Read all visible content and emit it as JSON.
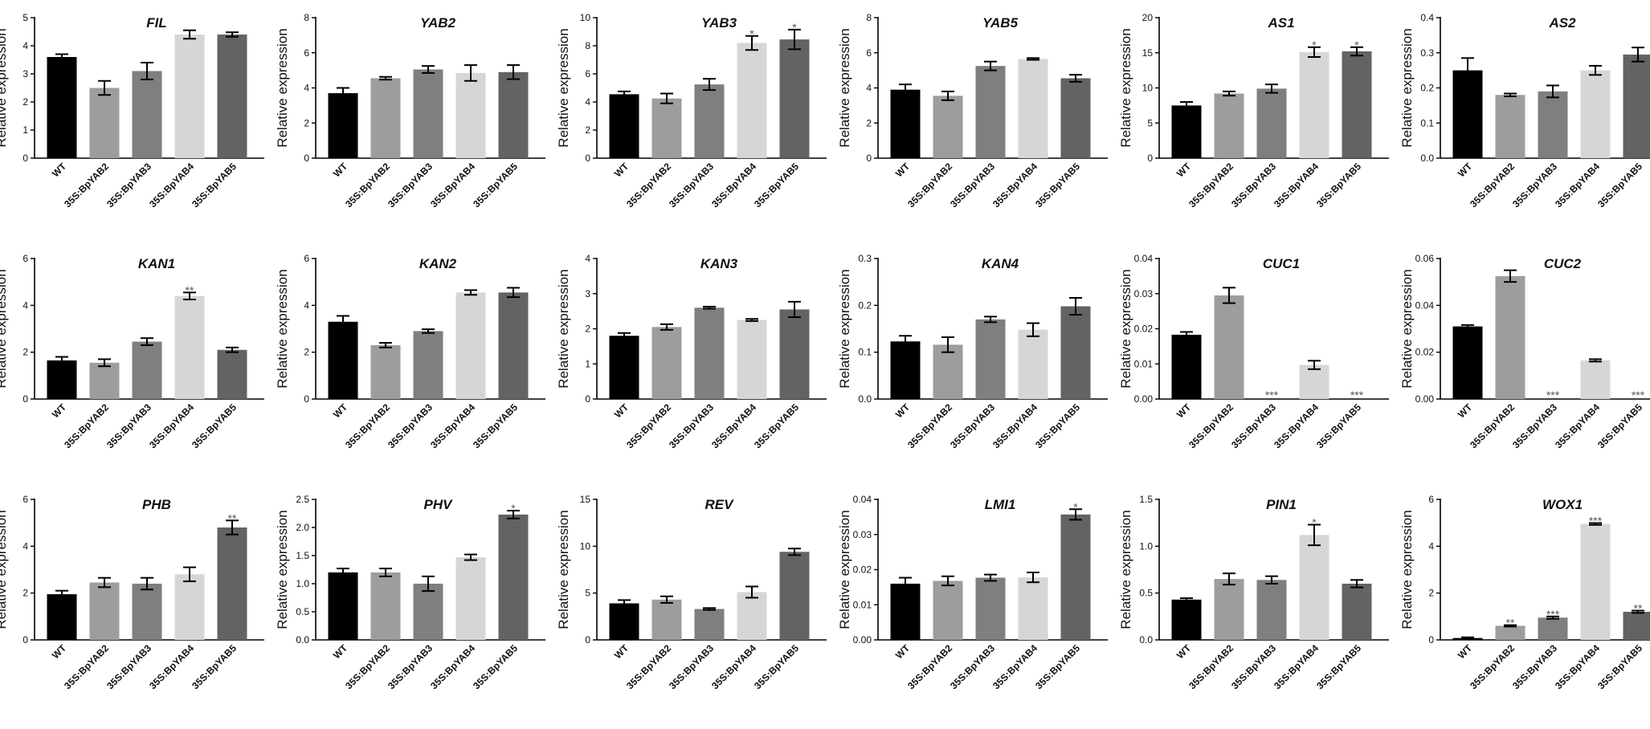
{
  "bar_colors": [
    "#000000",
    "#9d9d9d",
    "#7f7f7f",
    "#d6d6d6",
    "#636363"
  ],
  "chart_data": [
    {
      "type": "bar",
      "title": "FIL",
      "ylabel": "Relative expression",
      "categories": [
        "WT",
        "35S:BpYAB2",
        "35S:BpYAB3",
        "35S:BpYAB4",
        "35S:BpYAB5"
      ],
      "values": [
        3.6,
        2.5,
        3.1,
        4.4,
        4.4
      ],
      "errors": [
        0.1,
        0.25,
        0.3,
        0.15,
        0.08
      ],
      "significance": [
        "",
        "",
        "",
        "",
        ""
      ],
      "ylim": [
        0,
        5
      ],
      "ticks": [
        0,
        1,
        2,
        3,
        4,
        5
      ],
      "tick_labels": [
        "0",
        "1",
        "2",
        "3",
        "4",
        "5"
      ]
    },
    {
      "type": "bar",
      "title": "YAB2",
      "ylabel": "Relative expression",
      "categories": [
        "WT",
        "35S:BpYAB2",
        "35S:BpYAB3",
        "35S:BpYAB4",
        "35S:BpYAB5"
      ],
      "values": [
        3.7,
        4.55,
        5.05,
        4.85,
        4.9
      ],
      "errors": [
        0.3,
        0.08,
        0.2,
        0.45,
        0.4
      ],
      "significance": [
        "",
        "",
        "",
        "",
        ""
      ],
      "ylim": [
        0,
        8
      ],
      "ticks": [
        0,
        2,
        4,
        6,
        8
      ],
      "tick_labels": [
        "0",
        "2",
        "4",
        "6",
        "8"
      ]
    },
    {
      "type": "bar",
      "title": "YAB3",
      "ylabel": "Relative expression",
      "categories": [
        "WT",
        "35S:BpYAB2",
        "35S:BpYAB3",
        "35S:BpYAB4",
        "35S:BpYAB5"
      ],
      "values": [
        4.55,
        4.25,
        5.25,
        8.2,
        8.45
      ],
      "errors": [
        0.2,
        0.35,
        0.4,
        0.5,
        0.7
      ],
      "significance": [
        "",
        "",
        "",
        "*",
        "*"
      ],
      "ylim": [
        0,
        10
      ],
      "ticks": [
        0,
        2,
        4,
        6,
        8,
        10
      ],
      "tick_labels": [
        "0",
        "2",
        "4",
        "6",
        "8",
        "10"
      ]
    },
    {
      "type": "bar",
      "title": "YAB5",
      "ylabel": "Relative expression",
      "categories": [
        "WT",
        "35S:BpYAB2",
        "35S:BpYAB3",
        "35S:BpYAB4",
        "35S:BpYAB5"
      ],
      "values": [
        3.9,
        3.55,
        5.25,
        5.65,
        4.55
      ],
      "errors": [
        0.3,
        0.25,
        0.25,
        0.05,
        0.2
      ],
      "significance": [
        "",
        "",
        "",
        "",
        ""
      ],
      "ylim": [
        0,
        8
      ],
      "ticks": [
        0,
        2,
        4,
        6,
        8
      ],
      "tick_labels": [
        "0",
        "2",
        "4",
        "6",
        "8"
      ]
    },
    {
      "type": "bar",
      "title": "AS1",
      "ylabel": "Relative expression",
      "categories": [
        "WT",
        "35S:BpYAB2",
        "35S:BpYAB3",
        "35S:BpYAB4",
        "35S:BpYAB5"
      ],
      "values": [
        7.5,
        9.2,
        9.9,
        15.1,
        15.2
      ],
      "errors": [
        0.5,
        0.3,
        0.6,
        0.7,
        0.6
      ],
      "significance": [
        "",
        "",
        "",
        "*",
        "*"
      ],
      "ylim": [
        0,
        20
      ],
      "ticks": [
        0,
        5,
        10,
        15,
        20
      ],
      "tick_labels": [
        "0",
        "5",
        "10",
        "15",
        "20"
      ]
    },
    {
      "type": "bar",
      "title": "AS2",
      "ylabel": "Relative expression",
      "categories": [
        "WT",
        "35S:BpYAB2",
        "35S:BpYAB3",
        "35S:BpYAB4",
        "35S:BpYAB5"
      ],
      "values": [
        0.25,
        0.18,
        0.19,
        0.25,
        0.295
      ],
      "errors": [
        0.035,
        0.004,
        0.017,
        0.013,
        0.02
      ],
      "significance": [
        "",
        "",
        "",
        "",
        ""
      ],
      "ylim": [
        0,
        0.4
      ],
      "ticks": [
        0,
        0.1,
        0.2,
        0.3,
        0.4
      ],
      "tick_labels": [
        "0.0",
        "0.1",
        "0.2",
        "0.3",
        "0.4"
      ]
    },
    {
      "type": "bar",
      "title": "KAN1",
      "ylabel": "Relative expression",
      "categories": [
        "WT",
        "35S:BpYAB2",
        "35S:BpYAB3",
        "35S:BpYAB4",
        "35S:BpYAB5"
      ],
      "values": [
        1.65,
        1.55,
        2.45,
        4.4,
        2.1
      ],
      "errors": [
        0.15,
        0.15,
        0.15,
        0.15,
        0.1
      ],
      "significance": [
        "",
        "",
        "",
        "**",
        ""
      ],
      "ylim": [
        0,
        6
      ],
      "ticks": [
        0,
        2,
        4,
        6
      ],
      "tick_labels": [
        "0",
        "2",
        "4",
        "6"
      ]
    },
    {
      "type": "bar",
      "title": "KAN2",
      "ylabel": "Relative expression",
      "categories": [
        "WT",
        "35S:BpYAB2",
        "35S:BpYAB3",
        "35S:BpYAB4",
        "35S:BpYAB5"
      ],
      "values": [
        3.3,
        2.3,
        2.9,
        4.55,
        4.55
      ],
      "errors": [
        0.25,
        0.1,
        0.08,
        0.1,
        0.2
      ],
      "significance": [
        "",
        "",
        "",
        "",
        ""
      ],
      "ylim": [
        0,
        6
      ],
      "ticks": [
        0,
        2,
        4,
        6
      ],
      "tick_labels": [
        "0",
        "2",
        "4",
        "6"
      ]
    },
    {
      "type": "bar",
      "title": "KAN3",
      "ylabel": "Relative expression",
      "categories": [
        "WT",
        "35S:BpYAB2",
        "35S:BpYAB3",
        "35S:BpYAB4",
        "35S:BpYAB5"
      ],
      "values": [
        1.8,
        2.05,
        2.6,
        2.25,
        2.55
      ],
      "errors": [
        0.08,
        0.08,
        0.03,
        0.03,
        0.22
      ],
      "significance": [
        "",
        "",
        "",
        "",
        ""
      ],
      "ylim": [
        0,
        4
      ],
      "ticks": [
        0,
        1,
        2,
        3,
        4
      ],
      "tick_labels": [
        "0",
        "1",
        "2",
        "3",
        "4"
      ]
    },
    {
      "type": "bar",
      "title": "KAN4",
      "ylabel": "Relative expression",
      "categories": [
        "WT",
        "35S:BpYAB2",
        "35S:BpYAB3",
        "35S:BpYAB4",
        "35S:BpYAB5"
      ],
      "values": [
        0.123,
        0.116,
        0.17,
        0.148,
        0.198
      ],
      "errors": [
        0.012,
        0.016,
        0.006,
        0.014,
        0.018
      ],
      "significance": [
        "",
        "",
        "",
        "",
        ""
      ],
      "ylim": [
        0,
        0.3
      ],
      "ticks": [
        0,
        0.1,
        0.2,
        0.3
      ],
      "tick_labels": [
        "0.0",
        "0.1",
        "0.2",
        "0.3"
      ]
    },
    {
      "type": "bar",
      "title": "CUC1",
      "ylabel": "Relative expression",
      "categories": [
        "WT",
        "35S:BpYAB2",
        "35S:BpYAB3",
        "35S:BpYAB4",
        "35S:BpYAB5"
      ],
      "values": [
        0.0183,
        0.0295,
        0,
        0.0097,
        0
      ],
      "errors": [
        0.0008,
        0.0022,
        0,
        0.0012,
        0
      ],
      "significance": [
        "",
        "",
        "***",
        "",
        "***"
      ],
      "ylim": [
        0,
        0.04
      ],
      "ticks": [
        0,
        0.01,
        0.02,
        0.03,
        0.04
      ],
      "tick_labels": [
        "0.00",
        "0.01",
        "0.02",
        "0.03",
        "0.04"
      ]
    },
    {
      "type": "bar",
      "title": "CUC2",
      "ylabel": "Relative expression",
      "categories": [
        "WT",
        "35S:BpYAB2",
        "35S:BpYAB3",
        "35S:BpYAB4",
        "35S:BpYAB5"
      ],
      "values": [
        0.031,
        0.0525,
        0,
        0.0165,
        0
      ],
      "errors": [
        0.0006,
        0.0025,
        0,
        0.0005,
        0
      ],
      "significance": [
        "",
        "",
        "***",
        "",
        "***"
      ],
      "ylim": [
        0,
        0.06
      ],
      "ticks": [
        0,
        0.02,
        0.04,
        0.06
      ],
      "tick_labels": [
        "0.00",
        "0.02",
        "0.04",
        "0.06"
      ]
    },
    {
      "type": "bar",
      "title": "PHB",
      "ylabel": "Relative expression",
      "categories": [
        "WT",
        "35S:BpYAB2",
        "35S:BpYAB3",
        "35S:BpYAB4",
        "35S:BpYAB5"
      ],
      "values": [
        1.95,
        2.45,
        2.4,
        2.8,
        4.8
      ],
      "errors": [
        0.15,
        0.2,
        0.25,
        0.3,
        0.3
      ],
      "significance": [
        "",
        "",
        "",
        "",
        "**"
      ],
      "ylim": [
        0,
        6
      ],
      "ticks": [
        0,
        2,
        4,
        6
      ],
      "tick_labels": [
        "0",
        "2",
        "4",
        "6"
      ]
    },
    {
      "type": "bar",
      "title": "PHV",
      "ylabel": "Relative expression",
      "categories": [
        "WT",
        "35S:BpYAB2",
        "35S:BpYAB3",
        "35S:BpYAB4",
        "35S:BpYAB5"
      ],
      "values": [
        1.2,
        1.2,
        1.0,
        1.47,
        2.23
      ],
      "errors": [
        0.07,
        0.07,
        0.13,
        0.05,
        0.07
      ],
      "significance": [
        "",
        "",
        "",
        "",
        "*"
      ],
      "ylim": [
        0,
        2.5
      ],
      "ticks": [
        0,
        0.5,
        1,
        1.5,
        2,
        2.5
      ],
      "tick_labels": [
        "0.0",
        "0.5",
        "1.0",
        "1.5",
        "2.0",
        "2.5"
      ]
    },
    {
      "type": "bar",
      "title": "REV",
      "ylabel": "Relative expression",
      "categories": [
        "WT",
        "35S:BpYAB2",
        "35S:BpYAB3",
        "35S:BpYAB4",
        "35S:BpYAB5"
      ],
      "values": [
        3.9,
        4.3,
        3.3,
        5.1,
        9.4
      ],
      "errors": [
        0.35,
        0.35,
        0.1,
        0.6,
        0.35
      ],
      "significance": [
        "",
        "",
        "",
        "",
        ""
      ],
      "ylim": [
        0,
        15
      ],
      "ticks": [
        0,
        5,
        10,
        15
      ],
      "tick_labels": [
        "0",
        "5",
        "10",
        "15"
      ]
    },
    {
      "type": "bar",
      "title": "LMI1",
      "ylabel": "Relative expression",
      "categories": [
        "WT",
        "35S:BpYAB2",
        "35S:BpYAB3",
        "35S:BpYAB4",
        "35S:BpYAB5"
      ],
      "values": [
        0.016,
        0.0168,
        0.0177,
        0.0178,
        0.0357
      ],
      "errors": [
        0.0017,
        0.0013,
        0.0009,
        0.0014,
        0.0015
      ],
      "significance": [
        "",
        "",
        "",
        "",
        "*"
      ],
      "ylim": [
        0,
        0.04
      ],
      "ticks": [
        0,
        0.01,
        0.02,
        0.03,
        0.04
      ],
      "tick_labels": [
        "0.00",
        "0.01",
        "0.02",
        "0.03",
        "0.04"
      ]
    },
    {
      "type": "bar",
      "title": "PIN1",
      "ylabel": "Relative expression",
      "categories": [
        "WT",
        "35S:BpYAB2",
        "35S:BpYAB3",
        "35S:BpYAB4",
        "35S:BpYAB5"
      ],
      "values": [
        0.43,
        0.65,
        0.64,
        1.12,
        0.6
      ],
      "errors": [
        0.015,
        0.06,
        0.04,
        0.11,
        0.04
      ],
      "significance": [
        "",
        "",
        "",
        "*",
        ""
      ],
      "ylim": [
        0,
        1.5
      ],
      "ticks": [
        0,
        0.5,
        1,
        1.5
      ],
      "tick_labels": [
        "0.0",
        "0.5",
        "1.0",
        "1.5"
      ]
    },
    {
      "type": "bar",
      "title": "WOX1",
      "ylabel": "Relative expression",
      "categories": [
        "WT",
        "35S:BpYAB2",
        "35S:BpYAB3",
        "35S:BpYAB4",
        "35S:BpYAB5"
      ],
      "values": [
        0.08,
        0.6,
        0.95,
        4.95,
        1.2
      ],
      "errors": [
        0.03,
        0.03,
        0.05,
        0.04,
        0.05
      ],
      "significance": [
        "",
        "**",
        "***",
        "***",
        "**"
      ],
      "ylim": [
        0,
        6
      ],
      "ticks": [
        0,
        2,
        4,
        6
      ],
      "tick_labels": [
        "0",
        "2",
        "4",
        "6"
      ]
    }
  ]
}
